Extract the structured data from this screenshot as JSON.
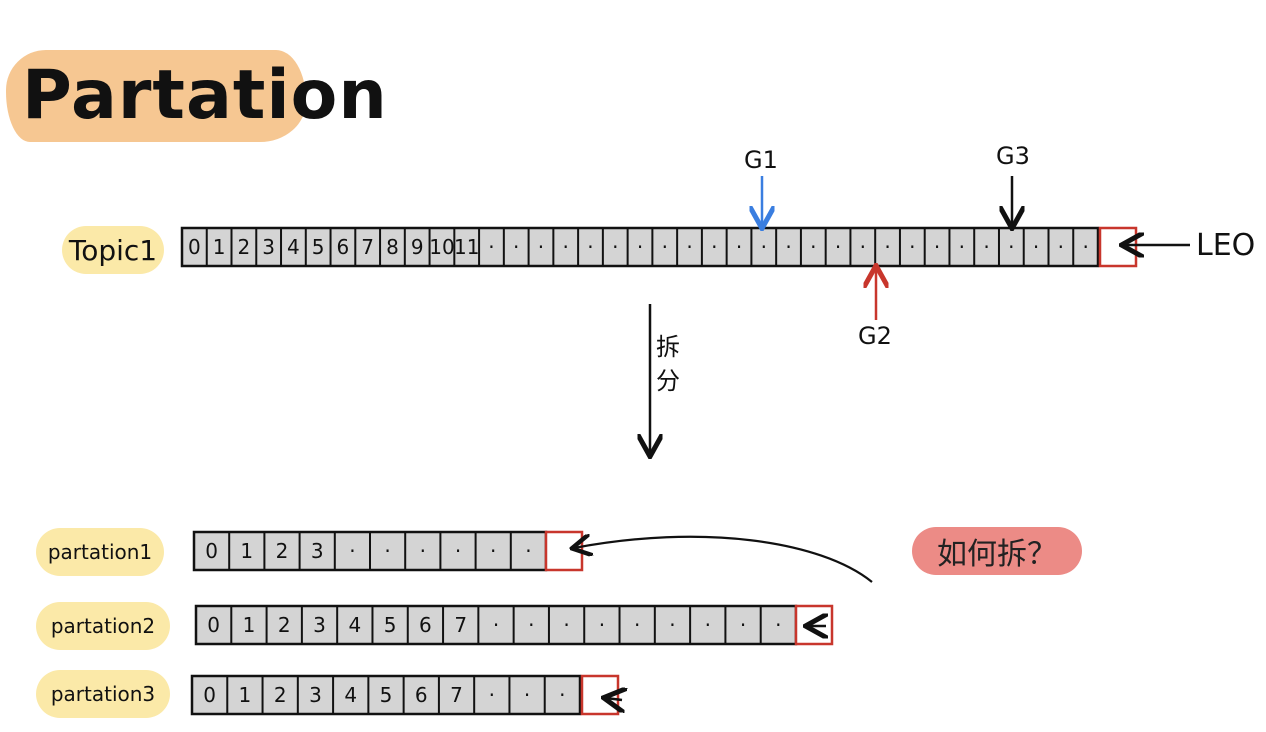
{
  "title": "Partation",
  "topic": {
    "label": "Topic1",
    "cells": [
      "0",
      "1",
      "2",
      "3",
      "4",
      "5",
      "6",
      "7",
      "8",
      "9",
      "10",
      "11",
      "·",
      "·",
      "·",
      "·",
      "·",
      "·",
      "·",
      "·",
      "·",
      "·",
      "·",
      "·",
      "·",
      "·",
      "·",
      "·",
      "·",
      "·",
      "·",
      "·",
      "·",
      "·",
      "·",
      "·",
      "·"
    ],
    "leo_label": "LEO"
  },
  "consumers": [
    {
      "name": "G1",
      "color": "#3a7ee0"
    },
    {
      "name": "G2",
      "color": "#c8362c"
    },
    {
      "name": "G3",
      "color": "#111111"
    }
  ],
  "split_label": "拆分",
  "partitions": [
    {
      "label": "partation1",
      "cells": [
        "0",
        "1",
        "2",
        "3",
        "·",
        "·",
        "·",
        "·",
        "·",
        "·"
      ]
    },
    {
      "label": "partation2",
      "cells": [
        "0",
        "1",
        "2",
        "3",
        "4",
        "5",
        "6",
        "7",
        "·",
        "·",
        "·",
        "·",
        "·",
        "·",
        "·",
        "·",
        "·"
      ]
    },
    {
      "label": "partation3",
      "cells": [
        "0",
        "1",
        "2",
        "3",
        "4",
        "5",
        "6",
        "7",
        "·",
        "·",
        "·"
      ]
    }
  ],
  "question": "如何拆？",
  "colors": {
    "cell_fill": "#d4d4d4",
    "leo_box": "#c8362c",
    "title_bg": "#f5c48c",
    "label_bg": "#fbe9a8",
    "question_bg": "#ec8b86"
  }
}
